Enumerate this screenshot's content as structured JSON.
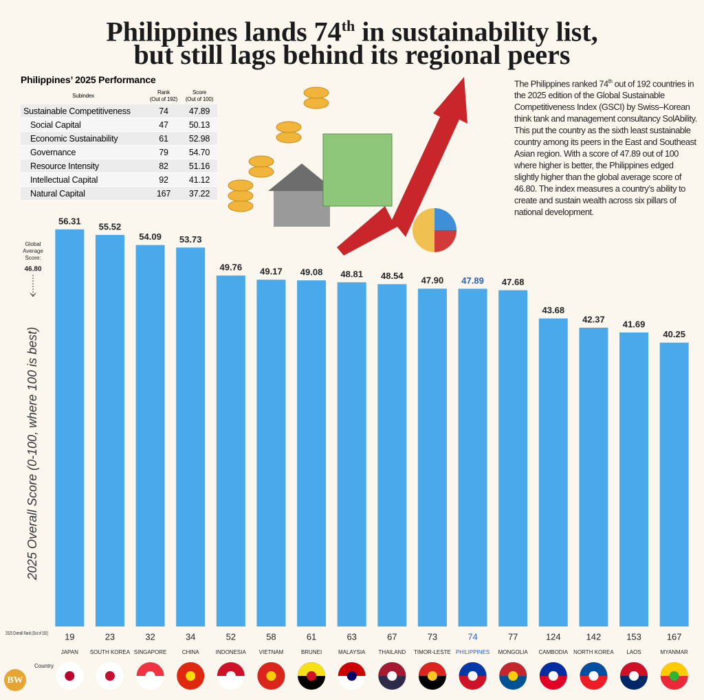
{
  "title": [
    "Philippines lands 74",
    "th",
    " in sustainability list,",
    "but still lags behind its regional peers"
  ],
  "table": {
    "title": "Philippines’ 2025 Performance",
    "headers": [
      [
        "Subindex"
      ],
      [
        "Rank",
        "(Out of 192)"
      ],
      [
        "Score",
        "(Out of 100)"
      ]
    ],
    "rows": [
      [
        "Sustainable Competitiveness",
        "74",
        "47.89"
      ],
      [
        "Social Capital",
        "47",
        "50.13"
      ],
      [
        "Economic Sustainability",
        "61",
        "52.98"
      ],
      [
        "Governance",
        "79",
        "54.70"
      ],
      [
        "Resource Intensity",
        "82",
        "51.16"
      ],
      [
        "Intellectual Capital",
        "92",
        "41.12"
      ],
      [
        "Natural Capital",
        "167",
        "37.22"
      ]
    ]
  },
  "description": [
    "The Philippines ranked 74",
    "th",
    " out of 192 countries in the 2025 edition of the Global Sustainable Competitiveness Index (GSCI) by Swiss–Korean think tank and management consultancy SolAbility. This put the country as the sixth least sustainable country among its peers in the East and Southeast Asian region. With a score of 47.89 out of 100 where higher is better, the Philippines edged slightly higher than the global average score of 46.80. The index measures a country’s ability to create and sustain wealth across six pillars of national development."
  ],
  "logo": "BW",
  "chart_data": {
    "type": "bar",
    "y_label": "2025 Overall Score (0-100, where 100 is best)",
    "categories": [
      "JAPAN",
      "SOUTH KOREA",
      "SINGAPORE",
      "CHINA",
      "INDONESIA",
      "VIETNAM",
      "BRUNEI",
      "MALAYSIA",
      "THAILAND",
      "TIMOR-LESTE",
      "PHILIPPINES",
      "MONGOLIA",
      "CAMBODIA",
      "NORTH KOREA",
      "LAOS",
      "MYANMAR"
    ],
    "values": [
      56.31,
      55.52,
      54.09,
      53.73,
      49.76,
      49.17,
      49.08,
      48.81,
      48.54,
      47.9,
      47.89,
      47.68,
      43.68,
      42.37,
      41.69,
      40.25
    ],
    "value_labels": [
      "56.31",
      "55.52",
      "54.09",
      "53.73",
      "49.76",
      "49.17",
      "49.08",
      "48.81",
      "48.54",
      "47.90",
      "47.89",
      "47.68",
      "43.68",
      "42.37",
      "41.69",
      "40.25"
    ],
    "rank_label": "2025 Overall Rank (Out of 192)",
    "ranks": [
      19,
      23,
      32,
      34,
      52,
      58,
      61,
      63,
      67,
      73,
      74,
      77,
      124,
      142,
      153,
      167
    ],
    "country_label": "Country",
    "global_average": {
      "label": "Global Average Score:",
      "value": 46.8,
      "value_label": "46.80"
    },
    "color": "#4aa9ea",
    "highlight": "PHILIPPINES",
    "highlight_color": "#2c5fb5",
    "ylim": [
      0,
      60
    ]
  }
}
